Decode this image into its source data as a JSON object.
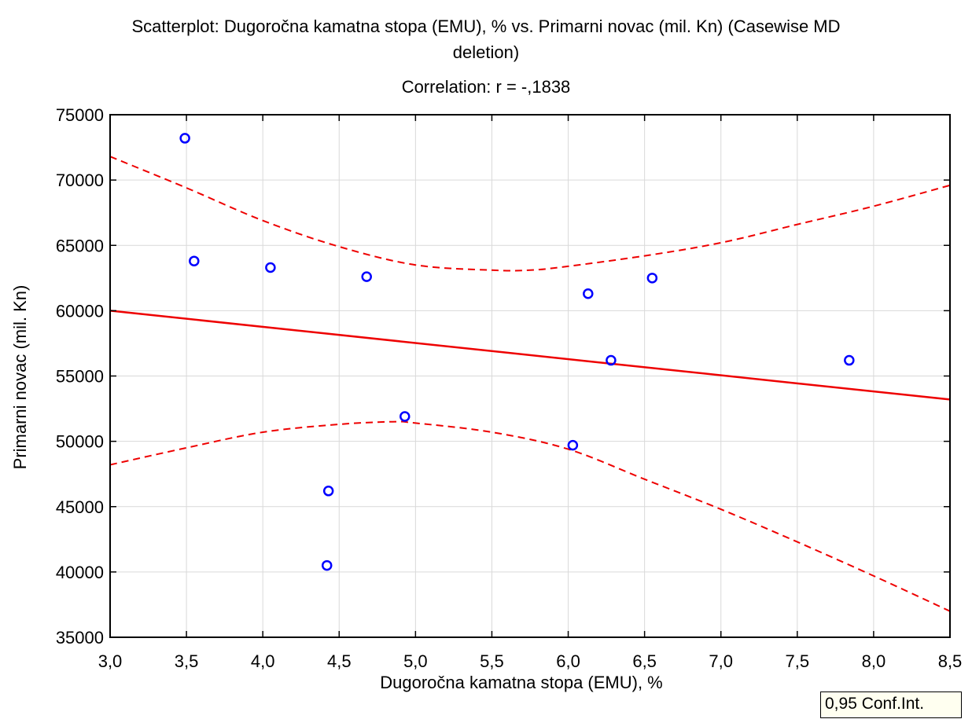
{
  "chart_data": {
    "type": "scatter",
    "title_line1": "Scatterplot: Dugoročna kamatna stopa (EMU), % vs. Primarni novac (mil. Kn) (Casewise MD",
    "title_line2": "deletion)",
    "subtitle": "Correlation: r = -,1838",
    "xlabel": "Dugoročna kamatna stopa (EMU), %",
    "ylabel": "Primarni novac (mil. Kn)",
    "xlim": [
      3.0,
      8.5
    ],
    "ylim": [
      35000,
      75000
    ],
    "x_ticks": [
      3.0,
      3.5,
      4.0,
      4.5,
      5.0,
      5.5,
      6.0,
      6.5,
      7.0,
      7.5,
      8.0,
      8.5
    ],
    "x_tick_labels": [
      "3,0",
      "3,5",
      "4,0",
      "4,5",
      "5,0",
      "5,5",
      "6,0",
      "6,5",
      "7,0",
      "7,5",
      "8,0",
      "8,5"
    ],
    "y_ticks": [
      35000,
      40000,
      45000,
      50000,
      55000,
      60000,
      65000,
      70000,
      75000
    ],
    "y_tick_labels": [
      "35000",
      "40000",
      "45000",
      "50000",
      "55000",
      "60000",
      "65000",
      "70000",
      "75000"
    ],
    "grid": true,
    "points": [
      {
        "x": 3.49,
        "y": 73200
      },
      {
        "x": 3.55,
        "y": 63800
      },
      {
        "x": 4.05,
        "y": 63300
      },
      {
        "x": 4.43,
        "y": 46200
      },
      {
        "x": 4.42,
        "y": 40500
      },
      {
        "x": 4.68,
        "y": 62600
      },
      {
        "x": 4.93,
        "y": 51900
      },
      {
        "x": 6.03,
        "y": 49700
      },
      {
        "x": 6.13,
        "y": 61300
      },
      {
        "x": 6.28,
        "y": 56200
      },
      {
        "x": 6.55,
        "y": 62500
      },
      {
        "x": 7.84,
        "y": 56200
      }
    ],
    "regression_line": {
      "x": [
        3.0,
        8.5
      ],
      "y": [
        60000,
        53200
      ]
    },
    "conf_upper": {
      "x": [
        3.0,
        3.5,
        4.0,
        4.5,
        5.0,
        5.5,
        5.75,
        6.0,
        6.5,
        7.0,
        7.5,
        8.0,
        8.5
      ],
      "y": [
        71800,
        69400,
        66900,
        64900,
        63500,
        63100,
        63100,
        63400,
        64200,
        65200,
        66600,
        68000,
        69600
      ]
    },
    "conf_lower": {
      "x": [
        3.0,
        3.5,
        4.0,
        4.5,
        4.85,
        5.0,
        5.5,
        6.0,
        6.5,
        7.0,
        7.5,
        8.0,
        8.5
      ],
      "y": [
        48200,
        49500,
        50700,
        51300,
        51500,
        51400,
        50700,
        49400,
        47100,
        44800,
        42300,
        39700,
        37000
      ]
    },
    "legend_label": "0,95 Conf.Int.",
    "colors": {
      "points": "#0000ff",
      "lines": "#ee0000",
      "grid": "#d9d9d9",
      "axes": "#000000"
    }
  }
}
